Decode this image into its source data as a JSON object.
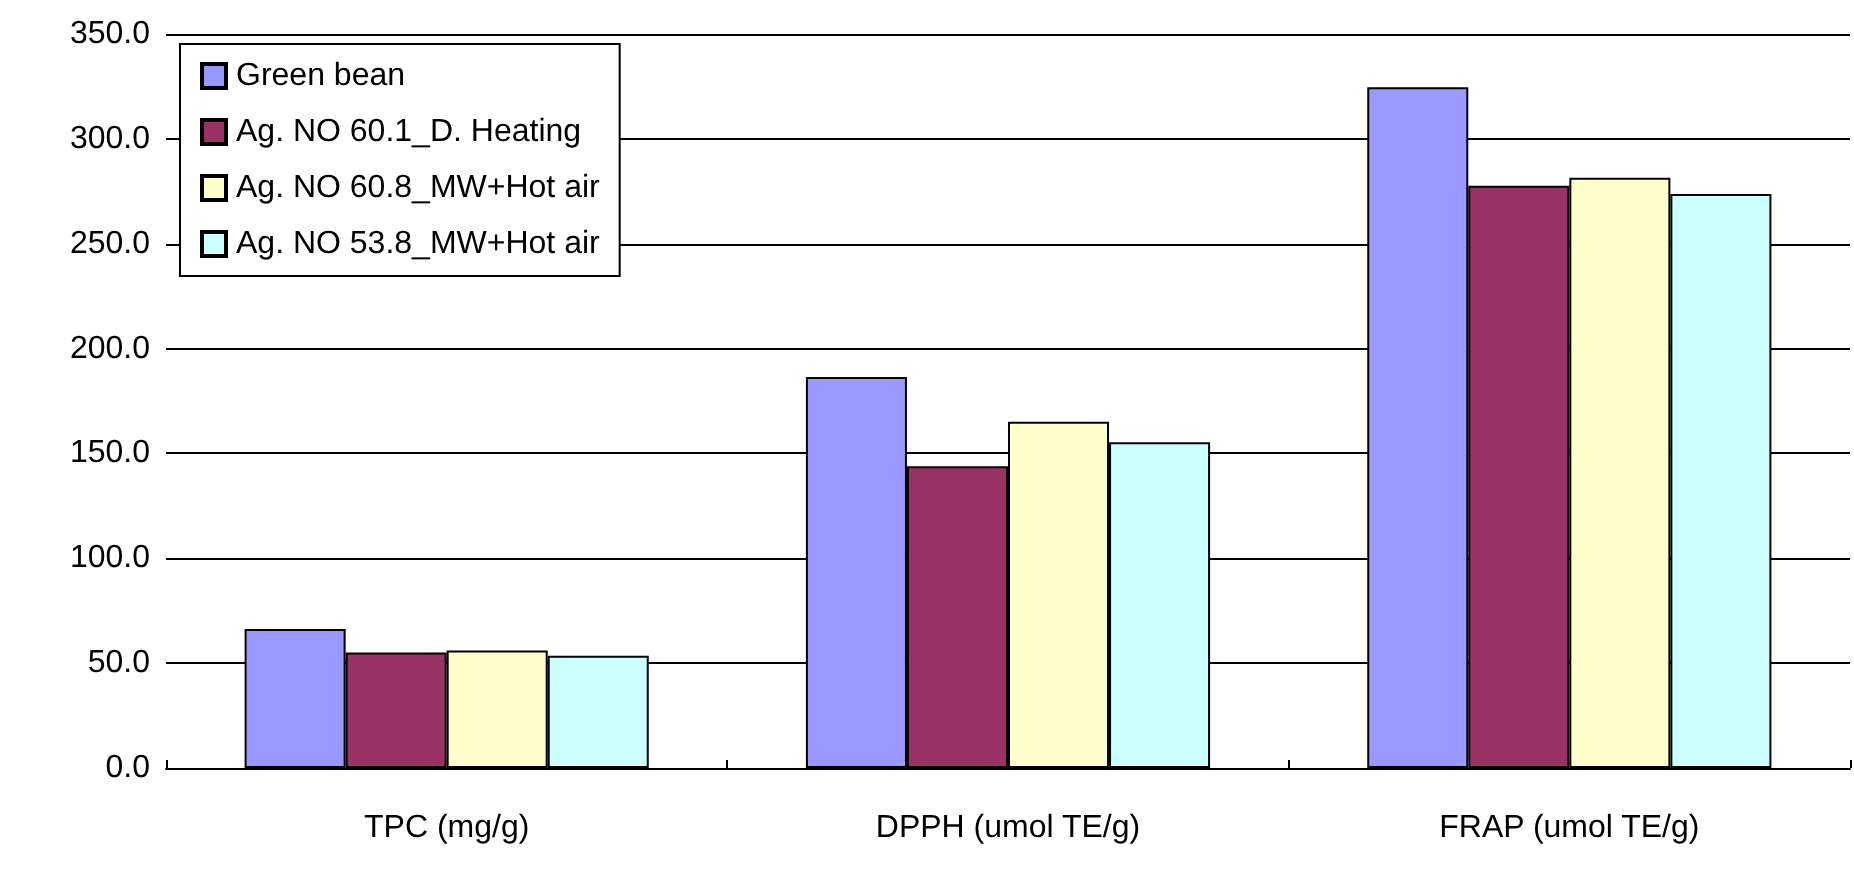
{
  "chart_data": {
    "type": "bar",
    "categories": [
      "TPC (mg/g)",
      "DPPH (umol TE/g)",
      "FRAP (umol TE/g)"
    ],
    "series": [
      {
        "name": "Green bean",
        "color": "#9999ff",
        "values": [
          66.3,
          186.5,
          324.6
        ]
      },
      {
        "name": "Ag. NO 60.1_D. Heating",
        "color": "#993366",
        "values": [
          55.1,
          143.9,
          277.6
        ]
      },
      {
        "name": "Ag. NO 60.8_MW+Hot air",
        "color": "#ffffcc",
        "values": [
          56.0,
          165.1,
          281.4
        ]
      },
      {
        "name": "Ag. NO 53.8_MW+Hot air",
        "color": "#ccffff",
        "values": [
          53.5,
          155.3,
          273.7
        ]
      }
    ],
    "ylim": [
      0,
      350
    ],
    "yticks": [
      {
        "value": 0,
        "label": "0.0"
      },
      {
        "value": 50,
        "label": "50.0"
      },
      {
        "value": 100,
        "label": "100.0"
      },
      {
        "value": 150,
        "label": "150.0"
      },
      {
        "value": 200,
        "label": "200.0"
      },
      {
        "value": 250,
        "label": "250.0"
      },
      {
        "value": 300,
        "label": "300.0"
      },
      {
        "value": 350,
        "label": "350.0"
      }
    ],
    "grid": "y",
    "legend": "top left"
  }
}
